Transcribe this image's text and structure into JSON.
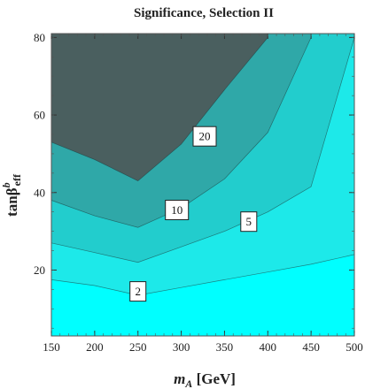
{
  "chart_data": {
    "type": "contour",
    "title": "Significance, Selection II",
    "xlabel": {
      "main": "m",
      "sub": "A",
      "unit": " [GeV]"
    },
    "ylabel": {
      "main": "tanβ",
      "sup": "b",
      "sub": "eff"
    },
    "xlim": [
      150,
      500
    ],
    "ylim": [
      3,
      81
    ],
    "xticks": [
      150,
      200,
      250,
      300,
      350,
      400,
      450,
      500
    ],
    "yticks": [
      20,
      40,
      60,
      80
    ],
    "x": [
      150,
      200,
      250,
      300,
      350,
      400,
      450,
      500
    ],
    "levels": [
      {
        "value": 2,
        "color": "#1de9e9",
        "label_at": {
          "x": 250,
          "y": 14.5
        },
        "boundary": [
          17.5,
          16.0,
          13.5,
          15.5,
          17.5,
          19.5,
          21.5,
          24.0
        ]
      },
      {
        "value": 5,
        "color": "#22cdcd",
        "label_at": {
          "x": 378,
          "y": 32.5
        },
        "boundary": [
          27.0,
          24.5,
          22.0,
          26.0,
          30.0,
          35.0,
          41.5,
          80.0
        ]
      },
      {
        "value": 10,
        "color": "#2fa8a8",
        "label_at": {
          "x": 295,
          "y": 35.5
        },
        "boundary": [
          38.0,
          34.0,
          31.0,
          36.0,
          43.5,
          55.5,
          80.0,
          null
        ]
      },
      {
        "value": 20,
        "color": "#4a5f5f",
        "label_at": {
          "x": 327,
          "y": 54.5
        },
        "boundary": [
          53.0,
          48.5,
          43.0,
          52.5,
          66.5,
          80.0,
          null,
          null
        ]
      }
    ],
    "base_color": "#00ffff",
    "grid": false,
    "legend": "none"
  }
}
